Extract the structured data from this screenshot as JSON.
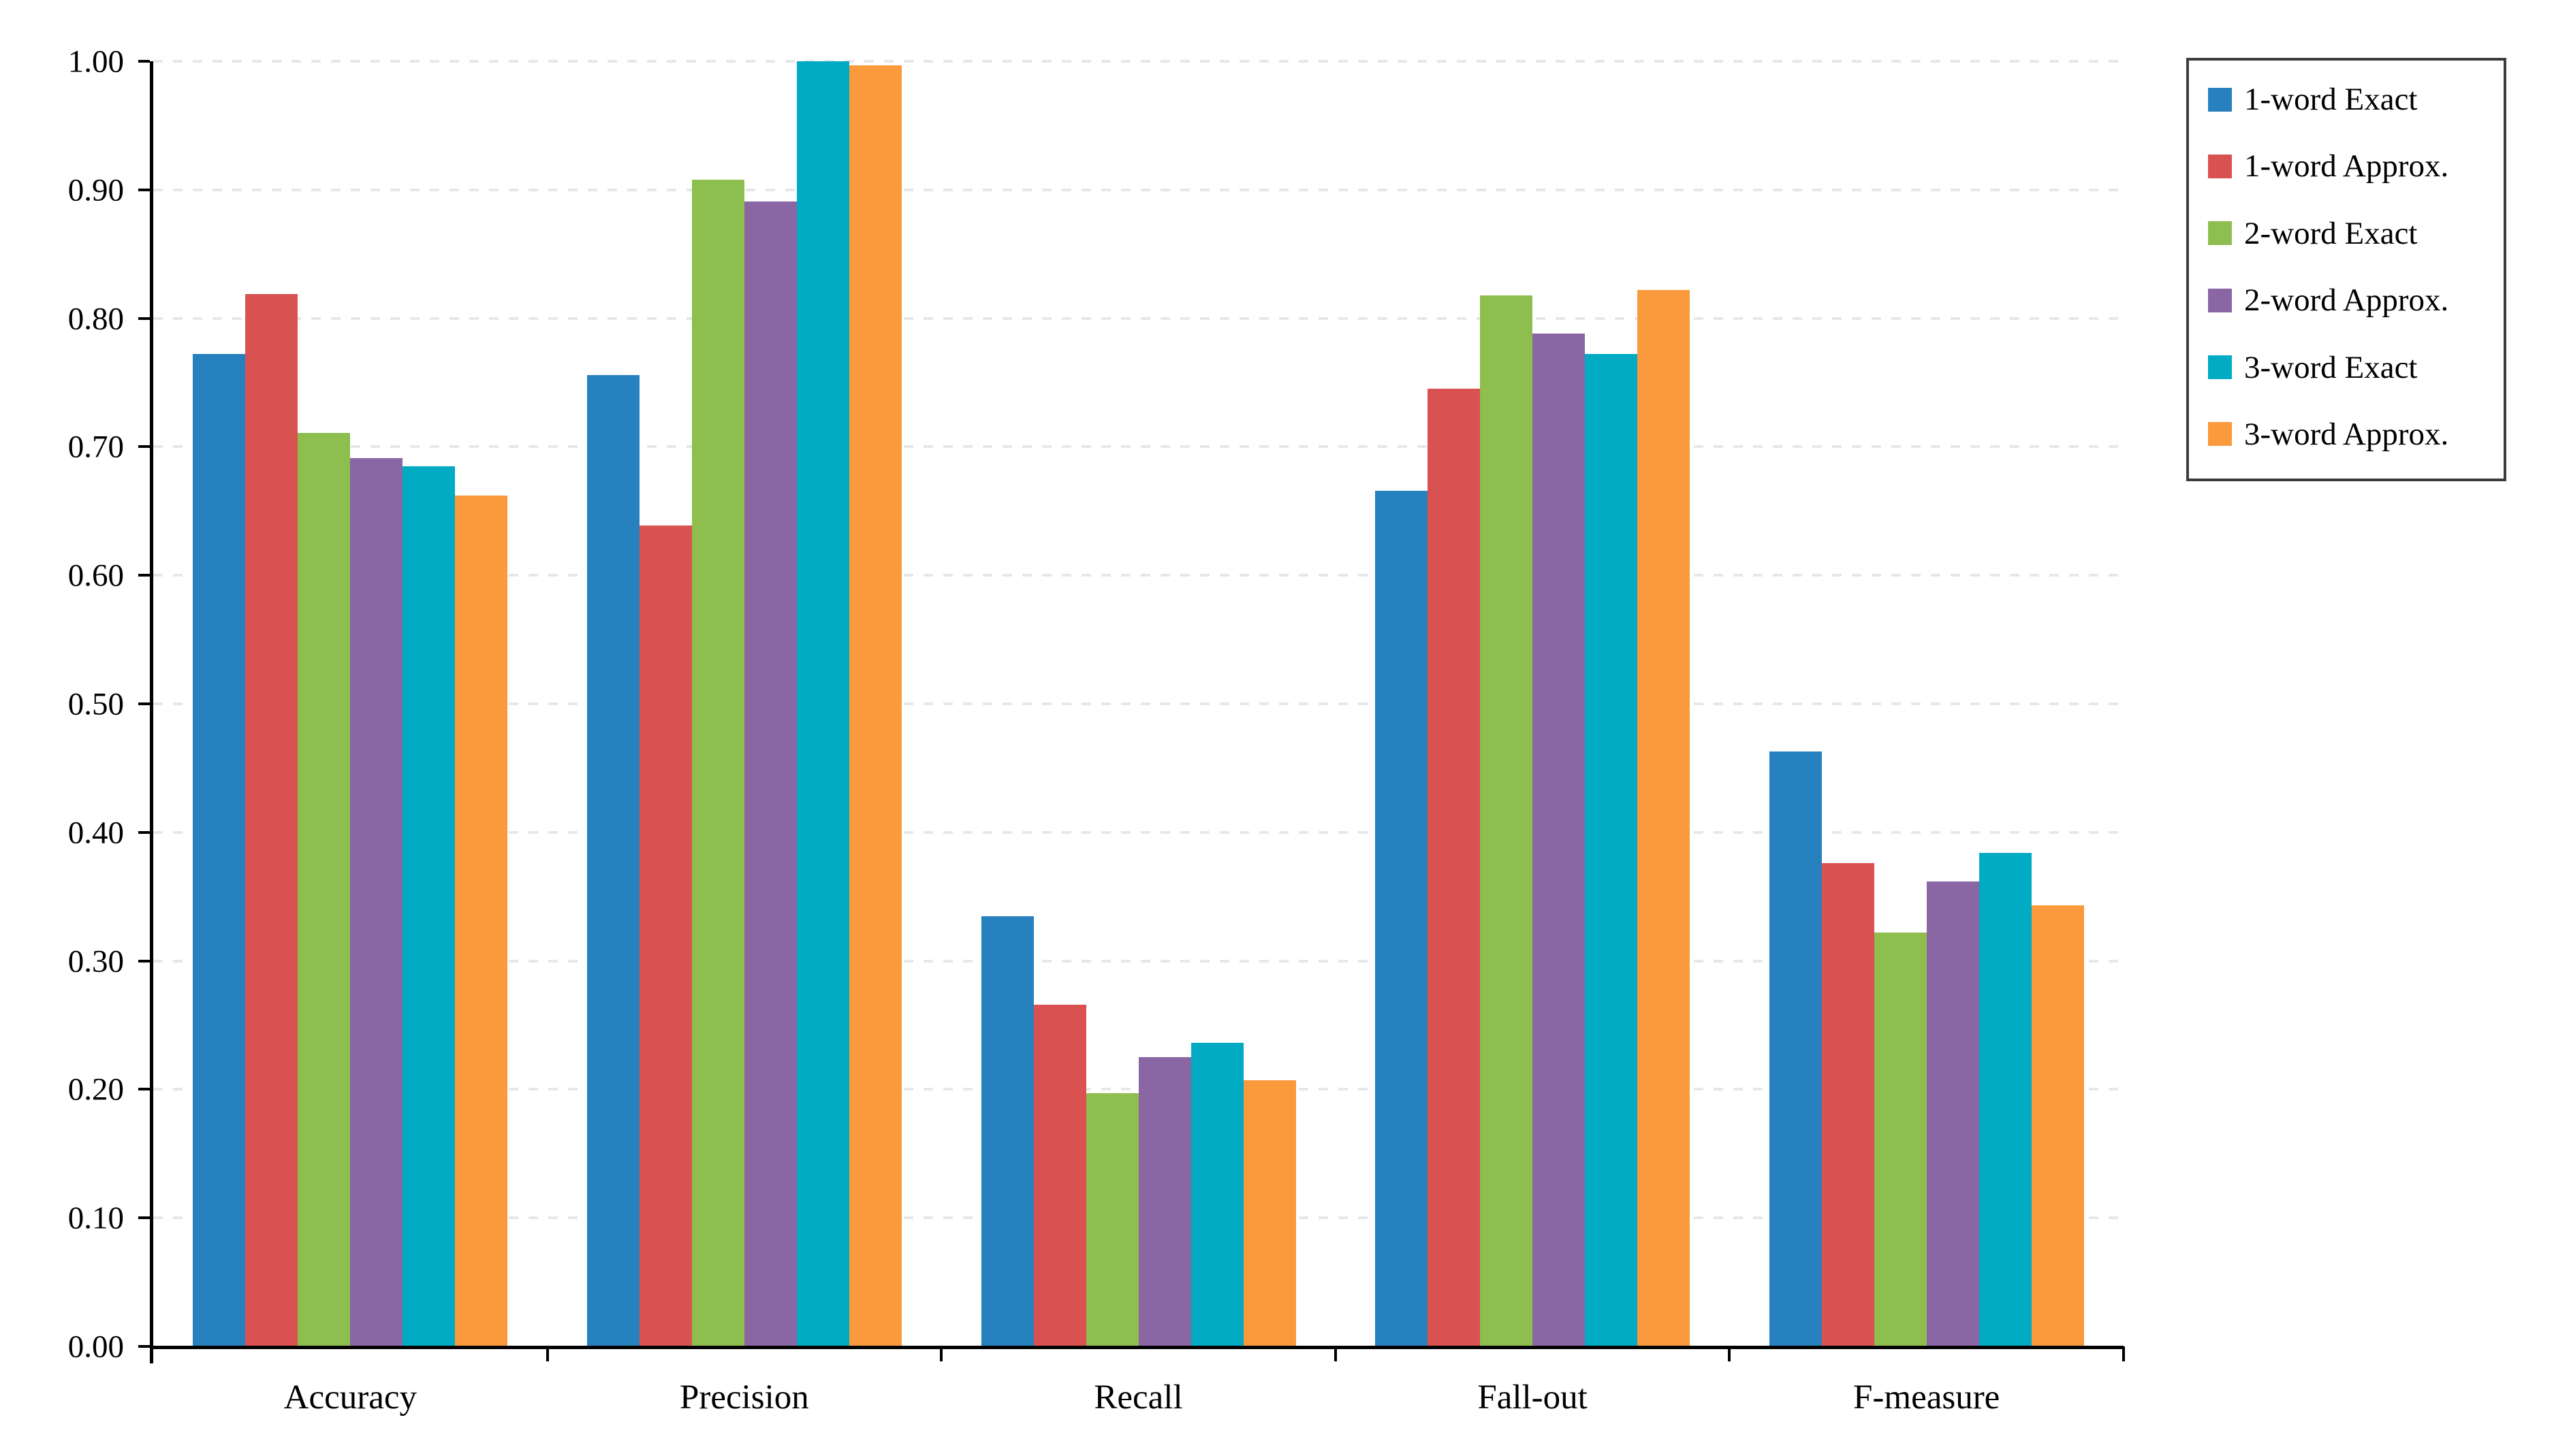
{
  "chart_data": {
    "type": "bar",
    "title": "",
    "xlabel": "",
    "ylabel": "",
    "ylim": [
      0.0,
      1.0
    ],
    "y_tick_step": 0.1,
    "y_tick_labels": [
      "0.00",
      "0.10",
      "0.20",
      "0.30",
      "0.40",
      "0.50",
      "0.60",
      "0.70",
      "0.80",
      "0.90",
      "1.00"
    ],
    "grid": "horizontal-dashed",
    "legend_position": "top-right",
    "categories": [
      "Accuracy",
      "Precision",
      "Recall",
      "Fall-out",
      "F-measure"
    ],
    "series": [
      {
        "name": "1-word Exact",
        "color": "#2781be",
        "values": [
          0.772,
          0.756,
          0.335,
          0.666,
          0.463
        ]
      },
      {
        "name": "1-word Approx.",
        "color": "#d95251",
        "values": [
          0.819,
          0.639,
          0.266,
          0.745,
          0.376
        ]
      },
      {
        "name": "2-word Exact",
        "color": "#8dbe4e",
        "values": [
          0.711,
          0.908,
          0.197,
          0.818,
          0.322
        ]
      },
      {
        "name": "2-word Approx.",
        "color": "#8b66a5",
        "values": [
          0.691,
          0.891,
          0.225,
          0.788,
          0.362
        ]
      },
      {
        "name": "3-word Exact",
        "color": "#00abc3",
        "values": [
          0.685,
          1.0,
          0.236,
          0.772,
          0.384
        ]
      },
      {
        "name": "3-word Approx.",
        "color": "#fb993d",
        "values": [
          0.662,
          0.997,
          0.207,
          0.822,
          0.343
        ]
      }
    ],
    "colors": {
      "axis": "#000000",
      "gridline": "#e7e7e7",
      "legend_border": "#3c3c3c",
      "text": "#000000",
      "background": "#ffffff"
    }
  }
}
